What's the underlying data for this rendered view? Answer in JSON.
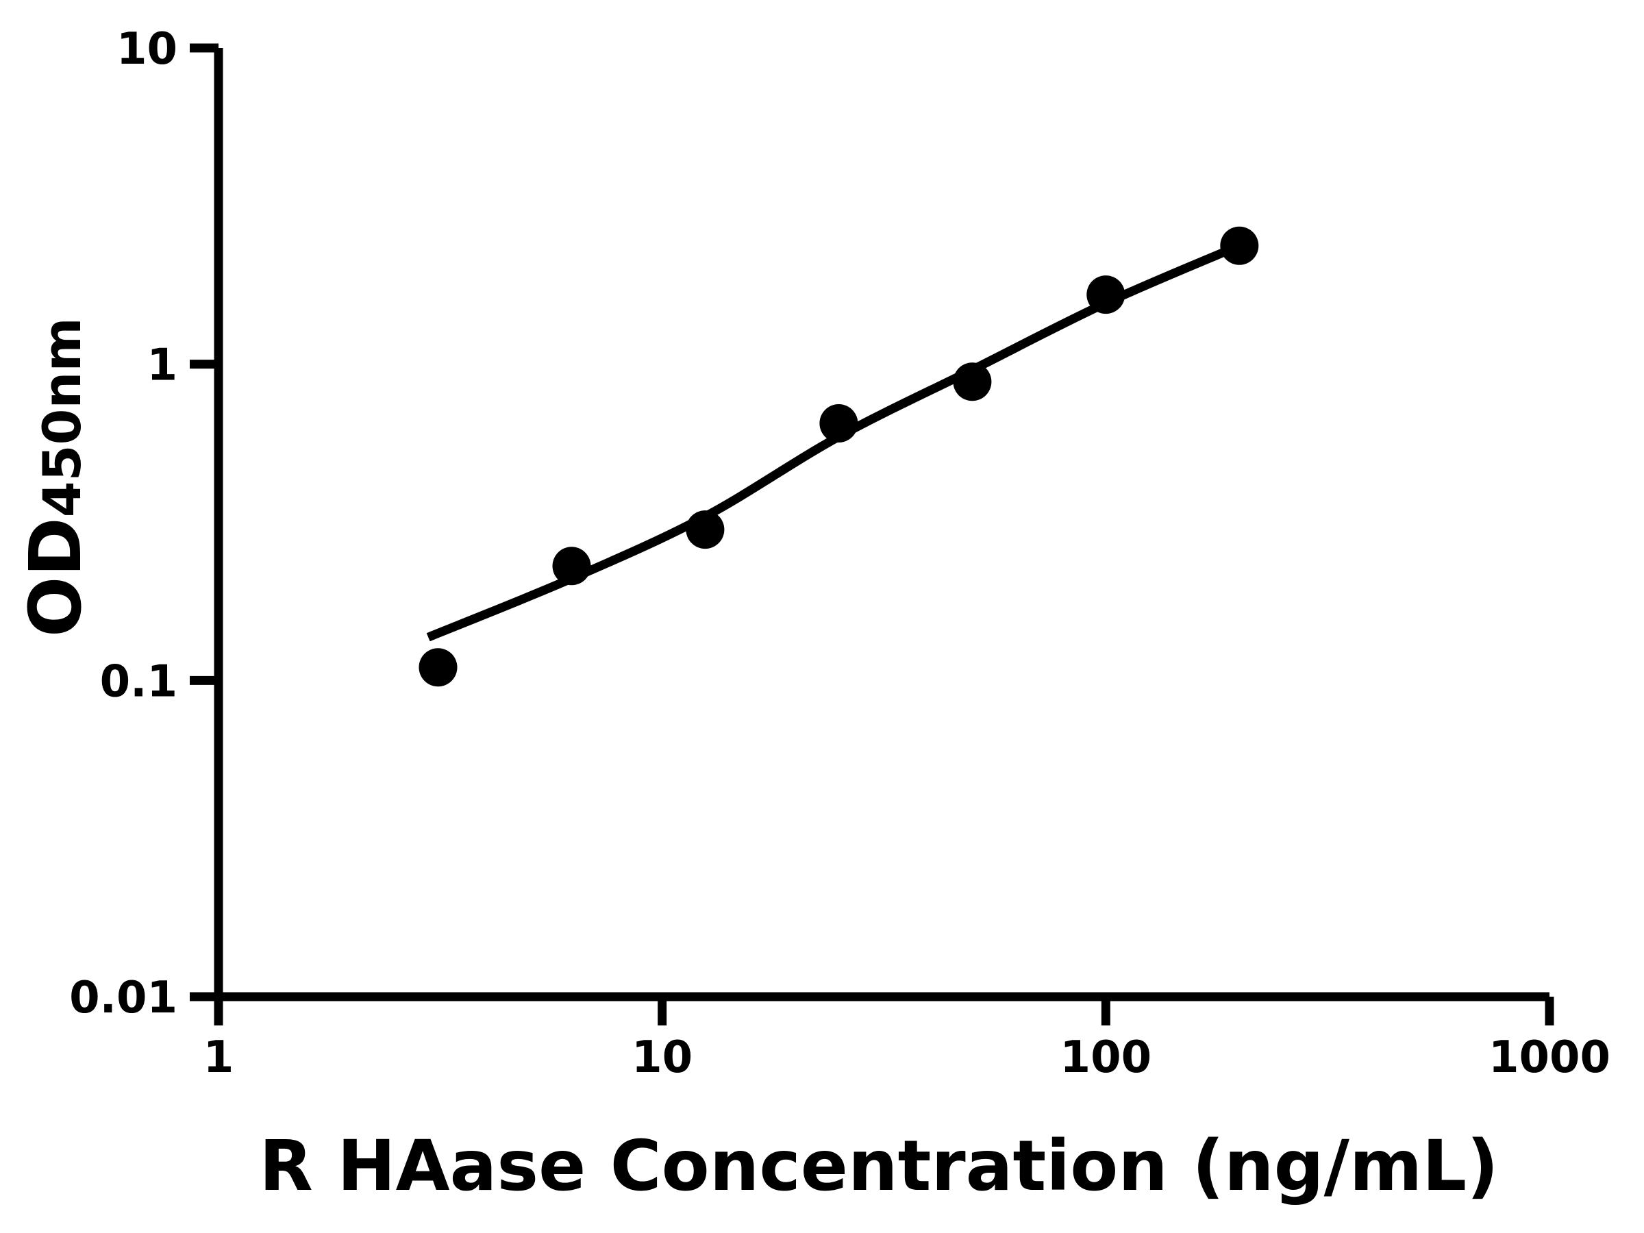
{
  "figure": {
    "background": "#ffffff",
    "foreground": "#000000",
    "x_axis_title": "R HAase Concentration (ng/mL)",
    "y_axis_title_main": "OD",
    "y_axis_title_sub": "450nm"
  },
  "chart_data": {
    "type": "scatter",
    "title": "",
    "xlabel": "R HAase Concentration (ng/mL)",
    "ylabel": "OD450nm",
    "x_scale": "log",
    "y_scale": "log",
    "xlim": [
      1,
      1000
    ],
    "ylim": [
      0.01,
      10
    ],
    "x_ticks": [
      1,
      10,
      100,
      1000
    ],
    "x_tick_labels": [
      "1",
      "10",
      "100",
      "1000"
    ],
    "y_ticks": [
      0.01,
      0.1,
      1,
      10
    ],
    "y_tick_labels": [
      "0.01",
      "0.1",
      "1",
      "10"
    ],
    "grid": false,
    "legend": null,
    "marker_color": "#000000",
    "line_color": "#000000",
    "series": [
      {
        "name": "standard-points",
        "kind": "scatter",
        "marker": "circle",
        "x": [
          3.125,
          6.25,
          12.5,
          25,
          50,
          100,
          200
        ],
        "y": [
          0.11,
          0.23,
          0.3,
          0.65,
          0.88,
          1.66,
          2.37
        ]
      },
      {
        "name": "fit-curve",
        "kind": "line",
        "x": [
          2.97,
          6.25,
          12.5,
          25,
          50,
          100,
          200
        ],
        "y": [
          0.137,
          0.21,
          0.33,
          0.59,
          0.96,
          1.56,
          2.37
        ]
      }
    ]
  }
}
